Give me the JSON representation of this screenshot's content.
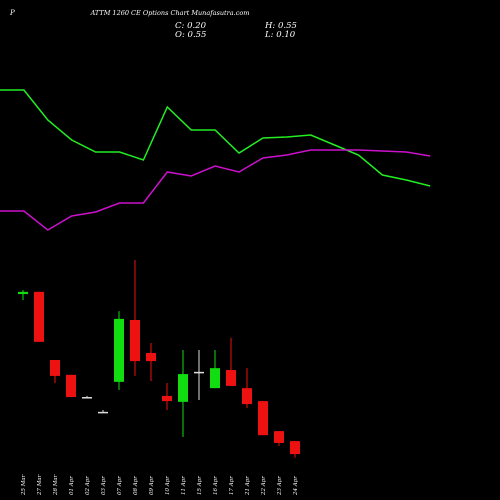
{
  "header": {
    "symbol": "P",
    "title": "ATTM 1260 CE Options Chart Munafasutra.com",
    "info": [
      "C: 0.20",
      "H: 0.55",
      "O: 0.55",
      "L: 0.10"
    ]
  },
  "chart_data": [
    {
      "type": "line",
      "ylim": [
        0,
        100
      ],
      "series": [
        {
          "color": "#22ee22",
          "values": [
            80,
            80,
            65,
            55,
            49,
            49,
            45,
            71.5,
            60,
            60,
            48.5,
            56,
            56.5,
            57.5,
            52.5,
            47.5,
            37.5,
            35,
            32
          ]
        },
        {
          "color": "#cc11cc",
          "values": [
            19.5,
            19.5,
            10,
            17,
            19,
            23.5,
            23.5,
            39,
            37,
            42,
            39,
            46,
            47.5,
            50,
            50,
            50,
            49.5,
            49,
            47
          ]
        }
      ]
    },
    {
      "type": "candlestick",
      "ylim": [
        0.04,
        5.71
      ],
      "up_color": "#11dd11",
      "down_color": "#ee1111",
      "flat_color": "#dddddd",
      "categories": [
        "25 Mar",
        "27 Mar",
        "28 Mar",
        "01 Apr",
        "02 Apr",
        "03 Apr",
        "07 Apr",
        "08 Apr",
        "09 Apr",
        "10 Apr",
        "11 Apr",
        "15 Apr",
        "16 Apr",
        "17 Apr",
        "21 Apr",
        "22 Apr",
        "23 Apr",
        "24 Apr"
      ],
      "open": [
        4.52,
        4.58,
        2.74,
        2.34,
        1.74,
        1.34,
        2.15,
        3.82,
        2.93,
        1.77,
        1.61,
        2.42,
        1.98,
        2.47,
        1.98,
        1.63,
        0.82,
        0.55
      ],
      "high": [
        4.63,
        4.58,
        2.74,
        2.34,
        1.77,
        1.39,
        4.06,
        5.44,
        3.2,
        2.12,
        3.01,
        3.01,
        3.01,
        3.34,
        2.52,
        1.63,
        0.82,
        0.55
      ],
      "low": [
        4.36,
        3.23,
        2.12,
        1.74,
        1.71,
        1.31,
        1.93,
        2.31,
        2.17,
        1.39,
        0.66,
        1.66,
        1.98,
        2.04,
        1.44,
        0.71,
        0.42,
        0.1
      ],
      "close": [
        4.58,
        3.23,
        2.31,
        1.74,
        1.74,
        1.34,
        3.85,
        2.71,
        2.71,
        1.63,
        2.36,
        2.42,
        2.52,
        2.04,
        1.55,
        0.71,
        0.5,
        0.2
      ]
    }
  ]
}
